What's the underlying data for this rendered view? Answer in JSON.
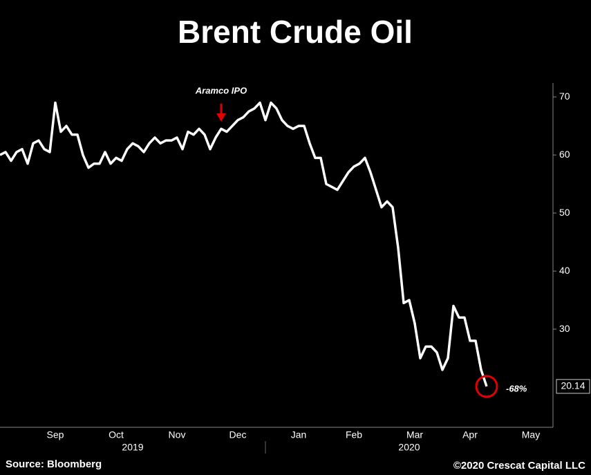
{
  "chart_data": {
    "type": "line",
    "title": "Brent Crude Oil",
    "categories": [
      null,
      null,
      null,
      null,
      null,
      null,
      null,
      null,
      null,
      null,
      "Sep",
      null,
      null,
      null,
      null,
      null,
      null,
      null,
      null,
      null,
      null,
      "Oct",
      null,
      null,
      null,
      null,
      null,
      null,
      null,
      null,
      null,
      null,
      "Nov",
      null,
      null,
      null,
      null,
      null,
      null,
      null,
      null,
      null,
      null,
      "Dec",
      null,
      null,
      null,
      null,
      null,
      null,
      null,
      null,
      null,
      null,
      "Jan",
      null,
      null,
      null,
      null,
      null,
      null,
      null,
      null,
      null,
      "Feb",
      null,
      null,
      null,
      null,
      null,
      null,
      null,
      null,
      null,
      null,
      "Mar",
      null,
      null,
      null,
      null,
      null,
      null,
      null,
      null,
      null,
      "Apr",
      null,
      null,
      null,
      null,
      null,
      null,
      null,
      null,
      null,
      null,
      "May",
      null,
      null,
      null
    ],
    "values": [
      60,
      60.5,
      59,
      60.5,
      61,
      58.5,
      62,
      62.5,
      61,
      60.5,
      69,
      64,
      65,
      63.5,
      63.5,
      60,
      57.8,
      58.5,
      58.5,
      60.5,
      58.5,
      59.5,
      59,
      61,
      62,
      61.5,
      60.5,
      62,
      63,
      62,
      62.5,
      62.5,
      63,
      61,
      64,
      63.5,
      64.5,
      63.5,
      61,
      63,
      64.5,
      64,
      65,
      66,
      66.5,
      67.5,
      68,
      69,
      66,
      69,
      68,
      66,
      65,
      64.5,
      65,
      65,
      62,
      59.5,
      59.5,
      55,
      54.5,
      54,
      55.5,
      57,
      58,
      58.5,
      59.5,
      57,
      54,
      51,
      52,
      51,
      44,
      34.5,
      35,
      31,
      25,
      27,
      27,
      26,
      23,
      25,
      34,
      32,
      32,
      28,
      28,
      23,
      20.14,
      null,
      null,
      null,
      null,
      null,
      null,
      null,
      null,
      null,
      null,
      null
    ],
    "color": "#ffffff",
    "year_labels": [
      "2019",
      "2020"
    ],
    "ylim": [
      13.1,
      72.4
    ],
    "yticks": [
      30,
      40,
      50,
      60,
      70
    ],
    "grid": false,
    "annotation_event": "Aramco IPO",
    "annotation_change": "-68%",
    "source": "Source: Bloomberg",
    "credit": "©2020 Crescat Capital LLC"
  }
}
